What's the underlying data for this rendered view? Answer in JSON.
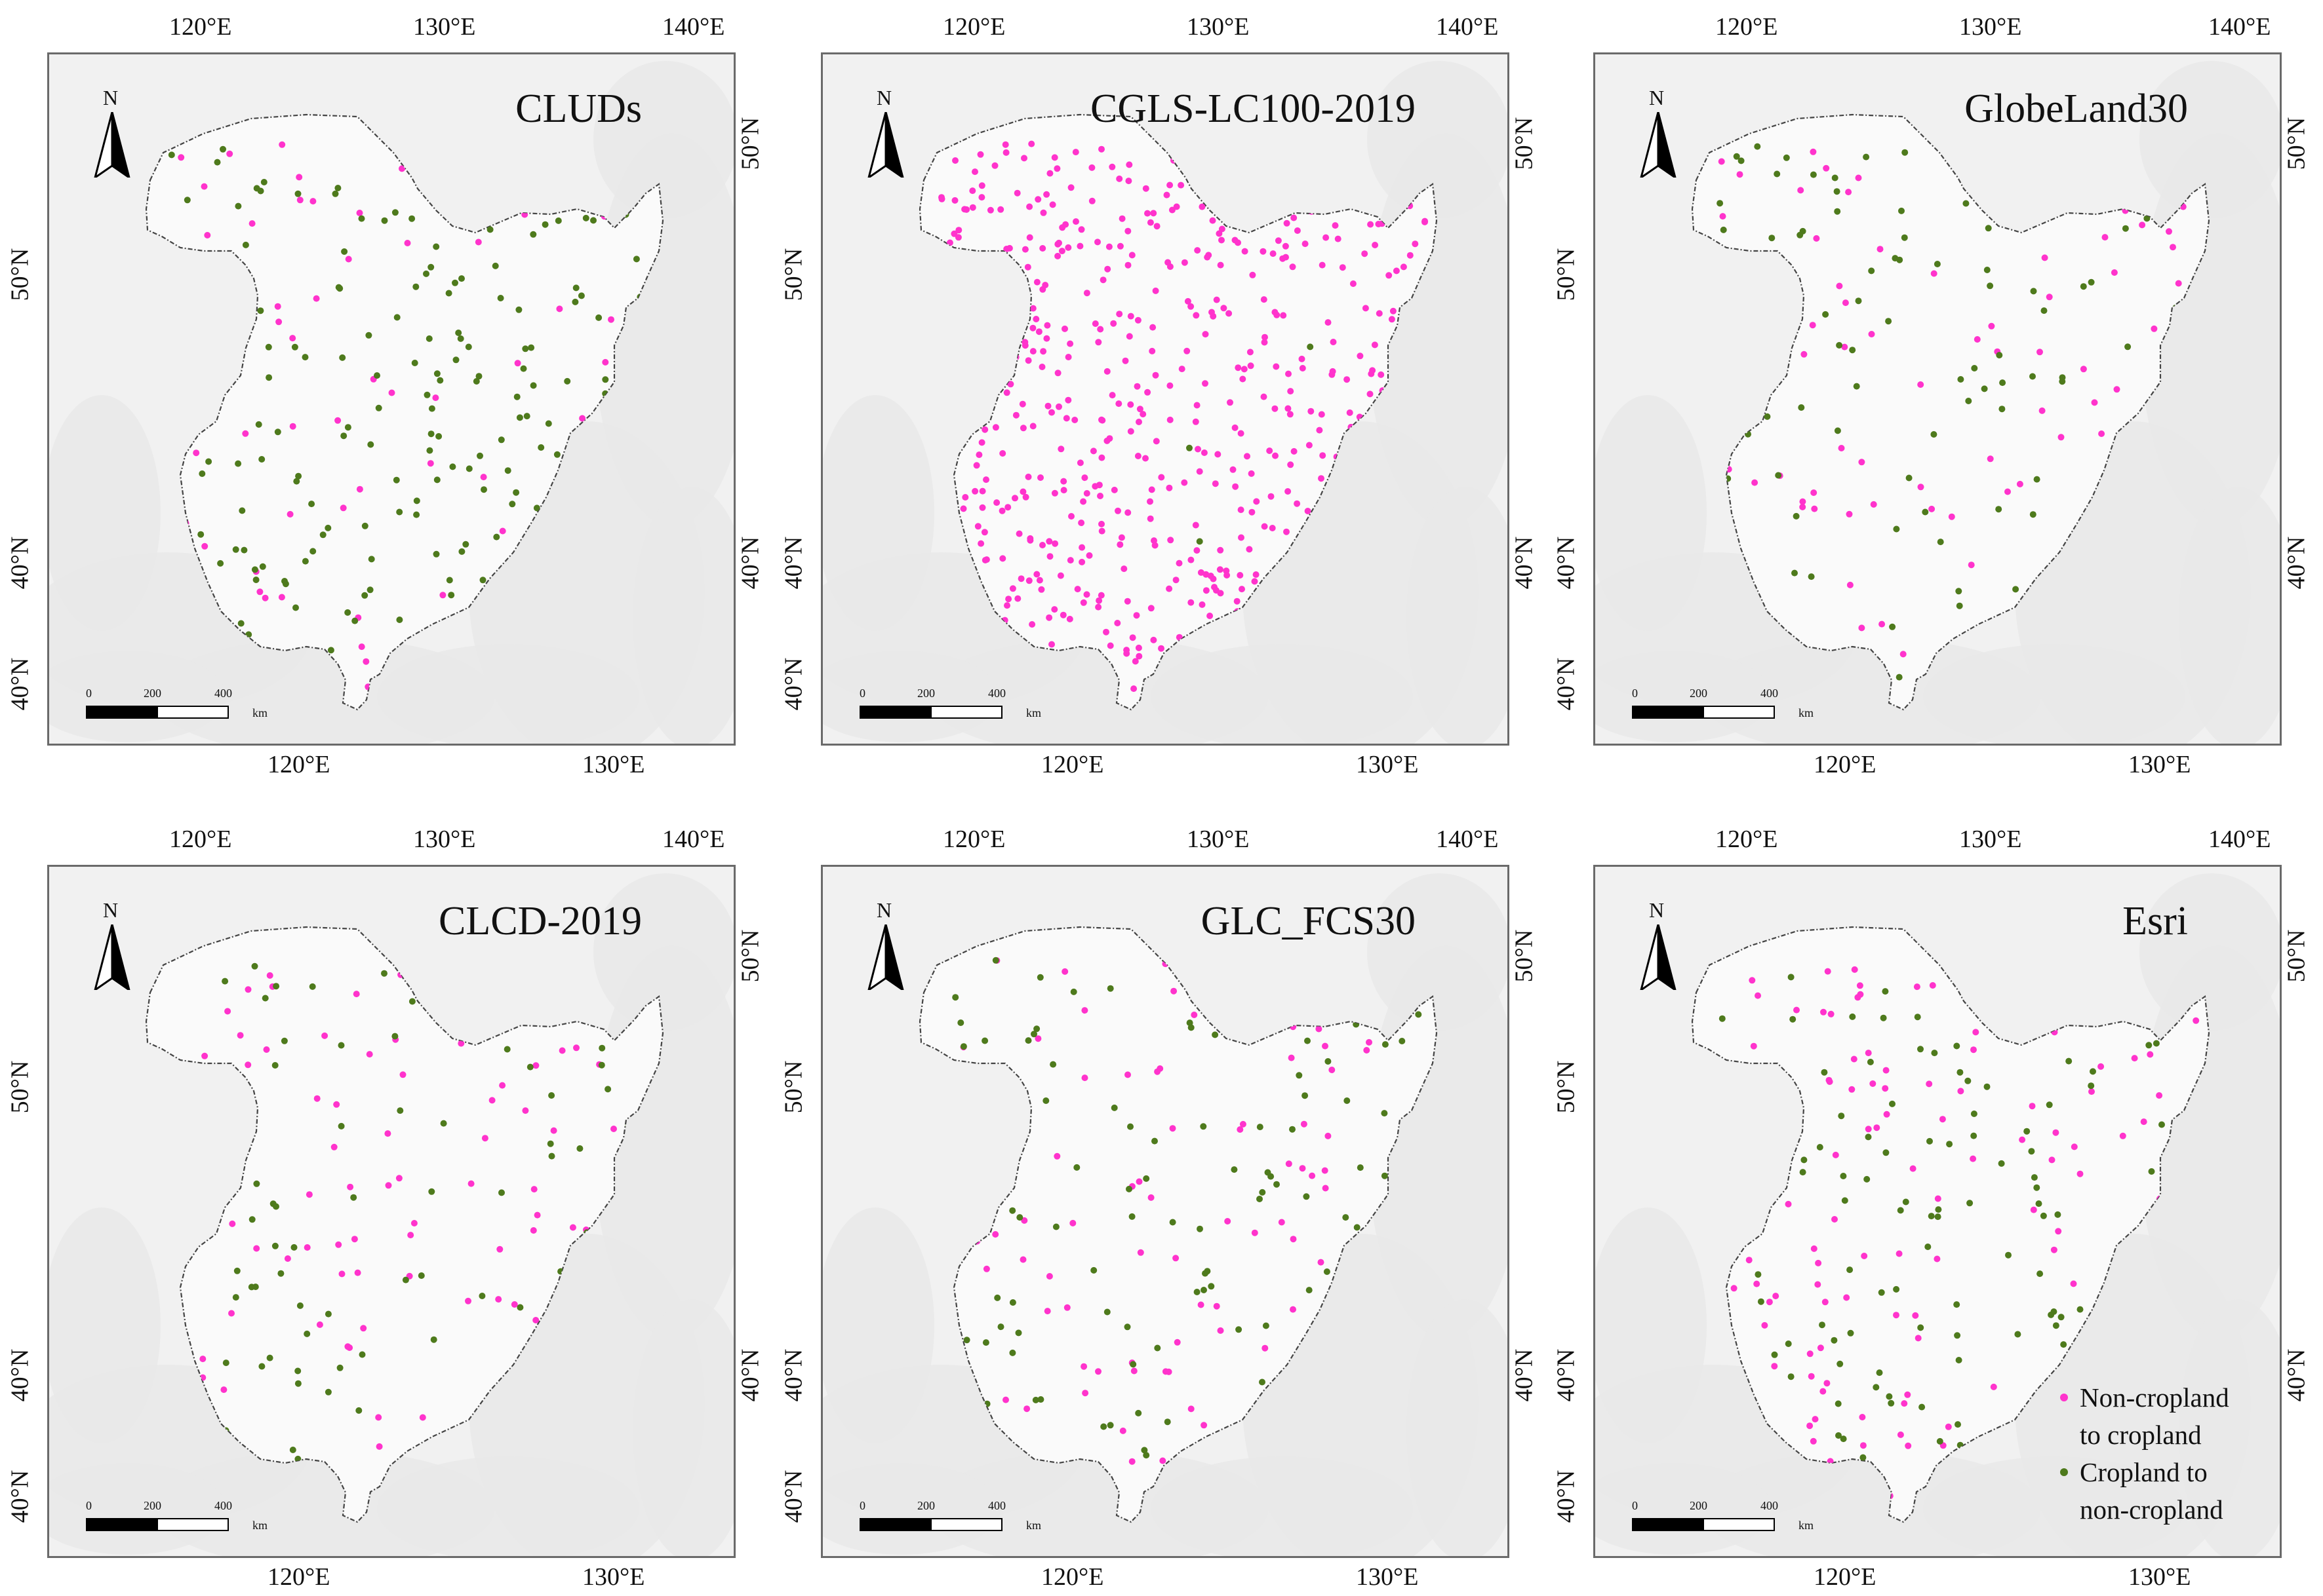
{
  "figure": {
    "colors": {
      "non_cropland_to_cropland": "#ff33cc",
      "cropland_to_non_cropland": "#4e7a1c",
      "boundary": "#444444",
      "terrain": "#e9e9e9"
    },
    "panels": [
      {
        "title": "CLUDs",
        "top_labels": [
          "120°E",
          "130°E",
          "140°E"
        ],
        "bottom_labels": [
          "120°E",
          "130°E"
        ],
        "left_labels": [
          "50°N",
          "40°N",
          "40°N"
        ],
        "right_labels": [
          "50°N",
          "40°N"
        ],
        "north_label": "N",
        "scale_labels": [
          "0",
          "200",
          "400",
          "km"
        ],
        "points": {
          "non_cropland_to_cropland": 75,
          "cropland_to_non_cropland": 220
        }
      },
      {
        "title": "CGLS-LC100-2019",
        "top_labels": [
          "120°E",
          "130°E",
          "140°E"
        ],
        "bottom_labels": [
          "120°E",
          "130°E"
        ],
        "left_labels": [
          "50°N",
          "40°N",
          "40°N"
        ],
        "right_labels": [
          "50°N",
          "40°N"
        ],
        "north_label": "N",
        "scale_labels": [
          "0",
          "200",
          "400",
          "km"
        ],
        "points": {
          "non_cropland_to_cropland": 620,
          "cropland_to_non_cropland": 6
        }
      },
      {
        "title": "GlobeLand30",
        "top_labels": [
          "120°E",
          "130°E",
          "140°E"
        ],
        "bottom_labels": [
          "120°E",
          "130°E"
        ],
        "left_labels": [
          "50°N",
          "40°N",
          "40°N"
        ],
        "right_labels": [
          "50°N",
          "40°N"
        ],
        "north_label": "N",
        "scale_labels": [
          "0",
          "200",
          "400",
          "km"
        ],
        "points": {
          "non_cropland_to_cropland": 95,
          "cropland_to_non_cropland": 115
        }
      },
      {
        "title": "CLCD-2019",
        "top_labels": [
          "120°E",
          "130°E",
          "140°E"
        ],
        "bottom_labels": [
          "120°E",
          "130°E"
        ],
        "left_labels": [
          "50°N",
          "40°N",
          "40°N"
        ],
        "right_labels": [
          "50°N",
          "40°N"
        ],
        "north_label": "N",
        "scale_labels": [
          "0",
          "200",
          "400",
          "km"
        ],
        "points": {
          "non_cropland_to_cropland": 100,
          "cropland_to_non_cropland": 95
        }
      },
      {
        "title": "GLC_FCS30",
        "top_labels": [
          "120°E",
          "130°E",
          "140°E"
        ],
        "bottom_labels": [
          "120°E",
          "130°E"
        ],
        "left_labels": [
          "50°N",
          "40°N",
          "40°N"
        ],
        "right_labels": [
          "50°N",
          "40°N"
        ],
        "north_label": "N",
        "scale_labels": [
          "0",
          "200",
          "400",
          "km"
        ],
        "points": {
          "non_cropland_to_cropland": 100,
          "cropland_to_non_cropland": 110
        }
      },
      {
        "title": "Esri",
        "top_labels": [
          "120°E",
          "130°E",
          "140°E"
        ],
        "bottom_labels": [
          "120°E",
          "130°E"
        ],
        "left_labels": [
          "50°N",
          "40°N",
          "40°N"
        ],
        "right_labels": [
          "50°N",
          "40°N"
        ],
        "north_label": "N",
        "scale_labels": [
          "0",
          "200",
          "400",
          "km"
        ],
        "points": {
          "non_cropland_to_cropland": 125,
          "cropland_to_non_cropland": 150
        }
      }
    ],
    "legend": {
      "items": [
        {
          "label_line1": "Non-cropland",
          "label_line2": "to cropland",
          "key": "non_cropland_to_cropland"
        },
        {
          "label_line1": "Cropland to",
          "label_line2": "non-cropland",
          "key": "cropland_to_non_cropland"
        }
      ]
    }
  }
}
